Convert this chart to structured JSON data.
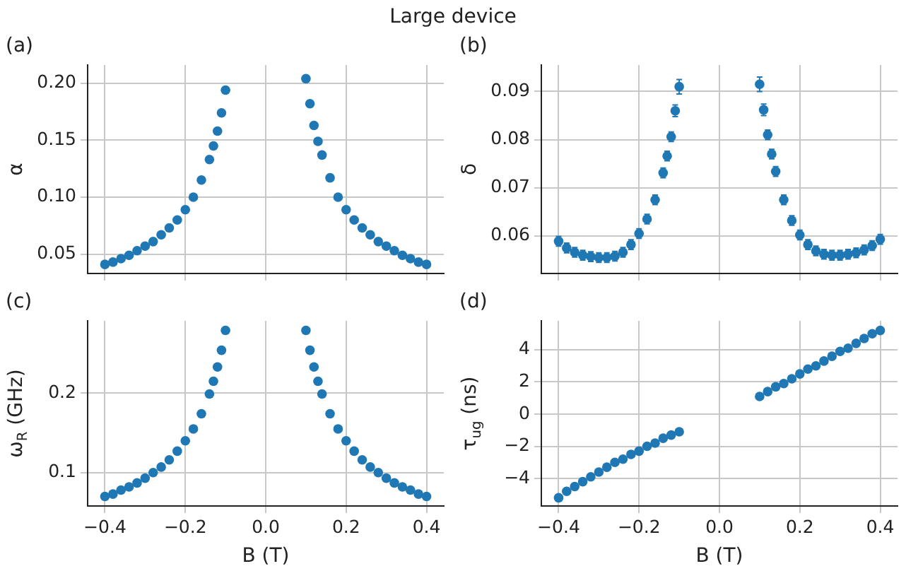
{
  "chart_data": [
    {
      "type": "scatter",
      "title": "Large device",
      "ylabel": "α",
      "annotations": [
        "(a)"
      ],
      "color": "#1f77b4",
      "marker": "circle",
      "grid": true,
      "tick_labels": "y",
      "x": [
        -0.4,
        -0.38,
        -0.36,
        -0.34,
        -0.32,
        -0.3,
        -0.28,
        -0.26,
        -0.24,
        -0.22,
        -0.2,
        -0.18,
        -0.16,
        -0.14,
        -0.13,
        -0.12,
        -0.11,
        -0.1,
        0.1,
        0.11,
        0.12,
        0.13,
        0.14,
        0.16,
        0.18,
        0.2,
        0.22,
        0.24,
        0.26,
        0.28,
        0.3,
        0.32,
        0.34,
        0.36,
        0.38,
        0.4
      ],
      "values": [
        0.041,
        0.043,
        0.046,
        0.049,
        0.053,
        0.057,
        0.061,
        0.067,
        0.073,
        0.08,
        0.089,
        0.1,
        0.115,
        0.133,
        0.145,
        0.158,
        0.174,
        0.194,
        0.204,
        0.182,
        0.163,
        0.149,
        0.137,
        0.117,
        0.1,
        0.089,
        0.08,
        0.073,
        0.067,
        0.061,
        0.057,
        0.053,
        0.049,
        0.046,
        0.043,
        0.041
      ],
      "xlim": [
        -0.443,
        0.443
      ],
      "xticks": [
        {
          "value": -0.4,
          "label": null
        },
        {
          "value": -0.2,
          "label": null
        },
        {
          "value": 0,
          "label": null
        },
        {
          "value": 0.2,
          "label": null
        },
        {
          "value": 0.4,
          "label": null
        }
      ],
      "ylim": [
        0.033,
        0.216
      ],
      "yticks": [
        {
          "value": 0.05,
          "label": "0.05"
        },
        {
          "value": 0.1,
          "label": "0.10"
        },
        {
          "value": 0.15,
          "label": "0.15"
        },
        {
          "value": 0.2,
          "label": "0.20"
        }
      ]
    },
    {
      "type": "scatter",
      "ylabel": "δ",
      "annotations": [
        "(b)"
      ],
      "color": "#1f77b4",
      "marker": "circle",
      "grid": true,
      "tick_labels": "y",
      "x": [
        -0.4,
        -0.38,
        -0.36,
        -0.34,
        -0.32,
        -0.3,
        -0.28,
        -0.26,
        -0.24,
        -0.22,
        -0.2,
        -0.18,
        -0.16,
        -0.14,
        -0.13,
        -0.12,
        -0.11,
        -0.1,
        0.1,
        0.11,
        0.12,
        0.13,
        0.14,
        0.16,
        0.18,
        0.2,
        0.22,
        0.24,
        0.26,
        0.28,
        0.3,
        0.32,
        0.34,
        0.36,
        0.38,
        0.4
      ],
      "values": [
        0.0589,
        0.0575,
        0.0566,
        0.056,
        0.0557,
        0.0555,
        0.0555,
        0.0558,
        0.0566,
        0.0582,
        0.0605,
        0.0635,
        0.0675,
        0.0731,
        0.0766,
        0.0806,
        0.086,
        0.091,
        0.0915,
        0.0862,
        0.081,
        0.077,
        0.0734,
        0.0675,
        0.0632,
        0.0602,
        0.0582,
        0.0569,
        0.0562,
        0.056,
        0.056,
        0.0562,
        0.0565,
        0.0571,
        0.058,
        0.0593
      ],
      "errors": [
        0.001,
        0.001,
        0.001,
        0.001,
        0.001,
        0.001,
        0.001,
        0.001,
        0.001,
        0.001,
        0.001,
        0.001,
        0.001,
        0.001,
        0.001,
        0.001,
        0.0012,
        0.0015,
        0.0015,
        0.0012,
        0.001,
        0.001,
        0.001,
        0.001,
        0.001,
        0.001,
        0.001,
        0.001,
        0.001,
        0.001,
        0.001,
        0.001,
        0.001,
        0.001,
        0.001,
        0.001
      ],
      "xlim": [
        -0.443,
        0.443
      ],
      "xticks": [
        {
          "value": -0.4,
          "label": null
        },
        {
          "value": -0.2,
          "label": null
        },
        {
          "value": 0,
          "label": null
        },
        {
          "value": 0.2,
          "label": null
        },
        {
          "value": 0.4,
          "label": null
        }
      ],
      "ylim": [
        0.0522,
        0.0955
      ],
      "yticks": [
        0.06,
        0.07,
        0.08,
        0.09
      ]
    },
    {
      "type": "scatter",
      "xlabel": "B (T)",
      "ylabel": "ω$_{R}$ (GHz)",
      "annotations": [
        "(c)"
      ],
      "color": "#1f77b4",
      "marker": "circle",
      "grid": true,
      "x": [
        -0.4,
        -0.38,
        -0.36,
        -0.34,
        -0.32,
        -0.3,
        -0.28,
        -0.26,
        -0.24,
        -0.22,
        -0.2,
        -0.18,
        -0.16,
        -0.14,
        -0.13,
        -0.12,
        -0.11,
        -0.1,
        0.1,
        0.11,
        0.12,
        0.13,
        0.14,
        0.16,
        0.18,
        0.2,
        0.22,
        0.24,
        0.26,
        0.28,
        0.3,
        0.32,
        0.34,
        0.36,
        0.38,
        0.4
      ],
      "values": [
        0.07,
        0.073,
        0.078,
        0.082,
        0.087,
        0.093,
        0.1,
        0.107,
        0.116,
        0.127,
        0.14,
        0.155,
        0.174,
        0.199,
        0.215,
        0.233,
        0.254,
        0.279,
        0.279,
        0.254,
        0.233,
        0.215,
        0.199,
        0.174,
        0.155,
        0.14,
        0.127,
        0.116,
        0.107,
        0.1,
        0.093,
        0.087,
        0.082,
        0.078,
        0.073,
        0.07
      ],
      "xlim": [
        -0.443,
        0.443
      ],
      "xticks": [
        {
          "value": -0.4,
          "label": "−0.4"
        },
        {
          "value": -0.2,
          "label": "−0.2"
        },
        {
          "value": 0,
          "label": "0.0"
        },
        {
          "value": 0.2,
          "label": "0.2"
        },
        {
          "value": 0.4,
          "label": "0.4"
        }
      ],
      "ylim": [
        0.058,
        0.291
      ],
      "yticks": [
        0.1,
        0.2
      ]
    },
    {
      "type": "scatter",
      "xlabel": "B (T)",
      "ylabel": "τ$_{ug}$ (ns)",
      "annotations": [
        "(d)"
      ],
      "color": "#1f77b4",
      "marker": "circle",
      "grid": true,
      "x": [
        -0.4,
        -0.38,
        -0.36,
        -0.34,
        -0.32,
        -0.3,
        -0.28,
        -0.26,
        -0.24,
        -0.22,
        -0.2,
        -0.18,
        -0.16,
        -0.14,
        -0.12,
        -0.1,
        0.1,
        0.12,
        0.14,
        0.16,
        0.18,
        0.2,
        0.22,
        0.24,
        0.26,
        0.28,
        0.3,
        0.32,
        0.34,
        0.36,
        0.38,
        0.4
      ],
      "values": [
        -5.2,
        -4.8,
        -4.5,
        -4.2,
        -3.9,
        -3.6,
        -3.3,
        -3.0,
        -2.8,
        -2.5,
        -2.3,
        -2.0,
        -1.8,
        -1.5,
        -1.3,
        -1.1,
        1.1,
        1.4,
        1.7,
        1.9,
        2.2,
        2.5,
        2.8,
        3.0,
        3.3,
        3.6,
        3.9,
        4.1,
        4.4,
        4.7,
        5.0,
        5.2
      ],
      "xlim": [
        -0.443,
        0.443
      ],
      "xticks": [
        {
          "value": -0.4,
          "label": "−0.4"
        },
        {
          "value": -0.2,
          "label": "−0.2"
        },
        {
          "value": 0,
          "label": "0.0"
        },
        {
          "value": 0.2,
          "label": "0.2"
        },
        {
          "value": 0.4,
          "label": "0.4"
        }
      ],
      "ylim": [
        -5.71,
        5.8
      ],
      "yticks": [
        {
          "value": -4,
          "label": "−4"
        },
        {
          "value": -2,
          "label": "−2"
        },
        0,
        2,
        4
      ]
    }
  ]
}
